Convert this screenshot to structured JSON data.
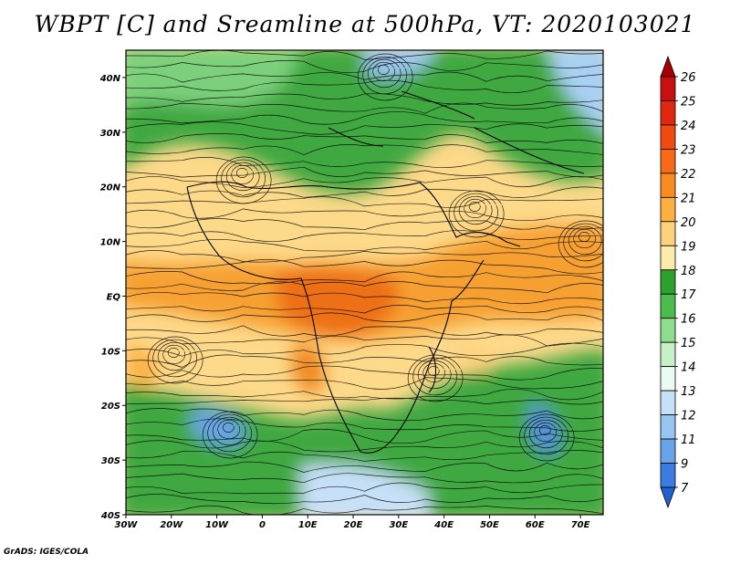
{
  "title": "WBPT [C] and Sreamline at 500hPa, VT: 2020103021",
  "credit": "GrADS: IGES/COLA",
  "axes": {
    "lon_ticks": [
      "30W",
      "20W",
      "10W",
      "0",
      "10E",
      "20E",
      "30E",
      "40E",
      "50E",
      "60E",
      "70E"
    ],
    "lat_ticks": [
      "40N",
      "30N",
      "20N",
      "10N",
      "EQ",
      "10S",
      "20S",
      "30S",
      "40S"
    ]
  },
  "colorbar": {
    "labels": [
      "26",
      "25",
      "24",
      "23",
      "22",
      "21",
      "20",
      "19",
      "18",
      "17",
      "16",
      "15",
      "14",
      "13",
      "12",
      "11",
      "9",
      "7"
    ],
    "colors": [
      "#a50000",
      "#c81010",
      "#e02810",
      "#f04a10",
      "#f76a18",
      "#f98c20",
      "#fcb040",
      "#fdd27a",
      "#fcebaa",
      "#2ea02e",
      "#4cbc4c",
      "#8edc8e",
      "#c8f0c8",
      "#ecfaf4",
      "#c6e0f8",
      "#98c4f0",
      "#6aa4e8",
      "#3c7ce0",
      "#2060d0"
    ]
  }
}
